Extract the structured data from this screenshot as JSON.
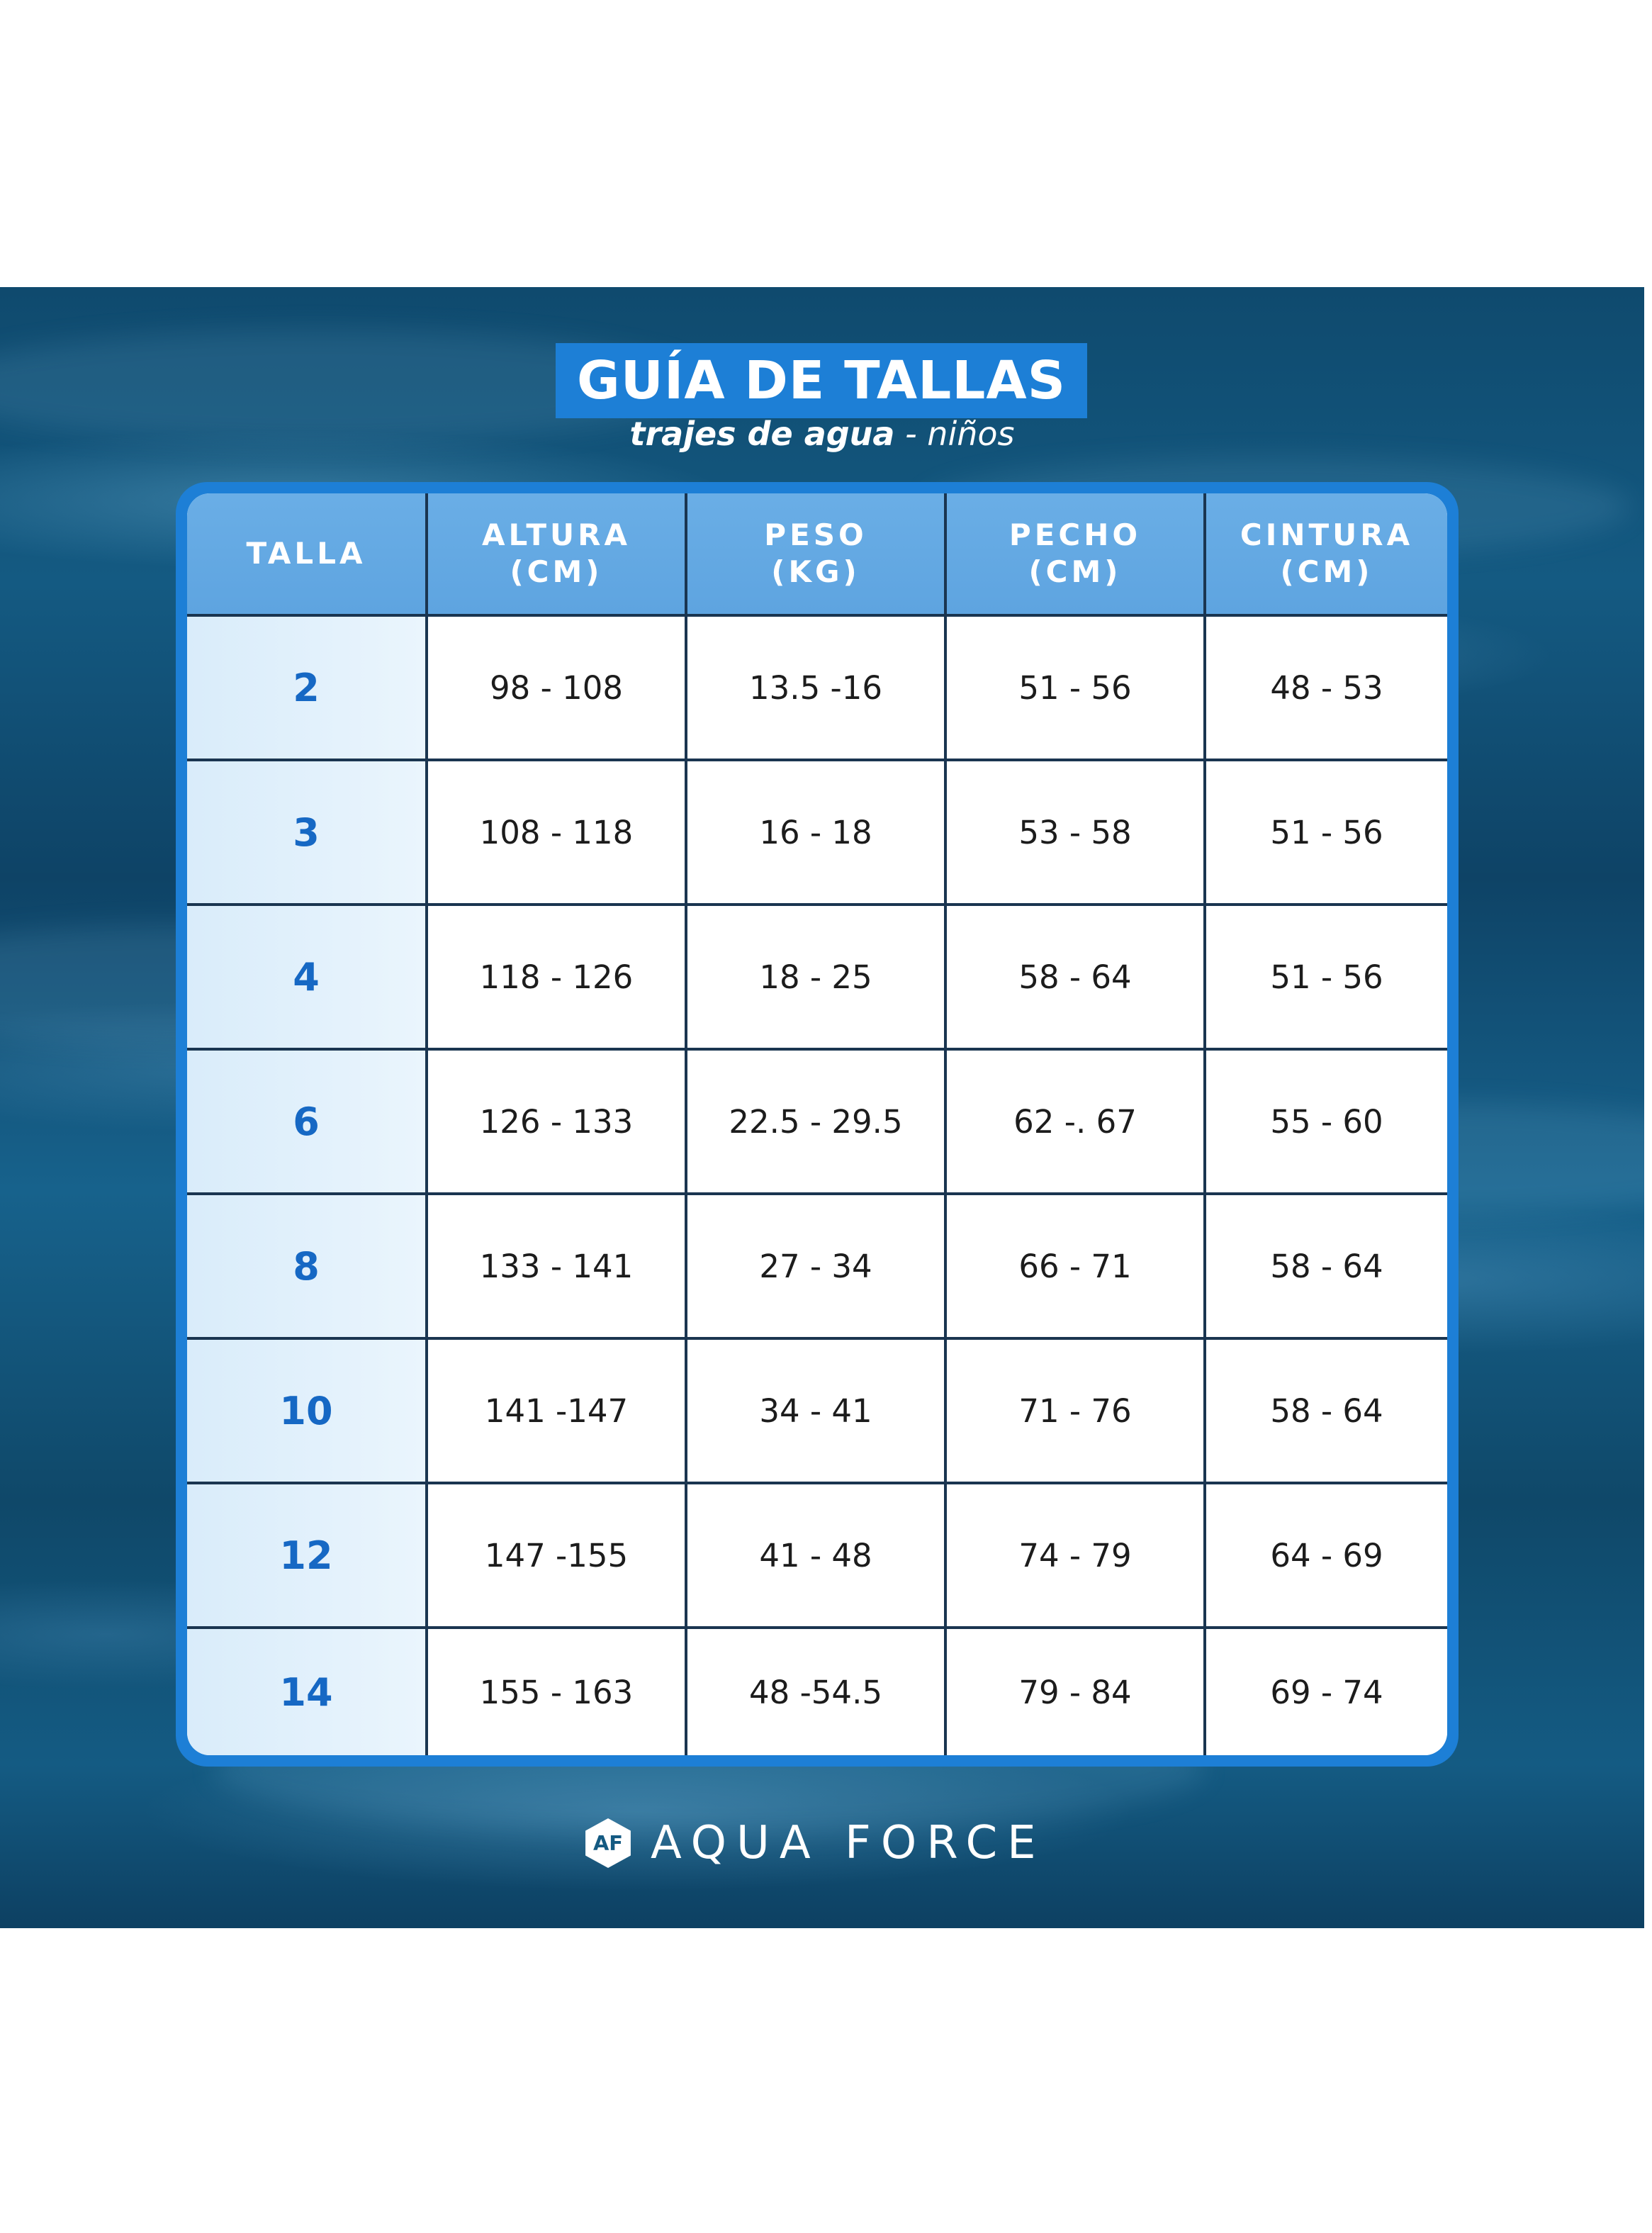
{
  "header": {
    "title": "GUÍA DE TALLAS",
    "subtitle_bold": "trajes de agua",
    "subtitle_rest": " - niños"
  },
  "table": {
    "columns": [
      "TALLA",
      "ALTURA\n(CM)",
      "PESO\n(KG)",
      "PECHO\n(CM)",
      "CINTURA\n(CM)"
    ],
    "rows": [
      {
        "talla": "2",
        "altura": "98 - 108",
        "peso": "13.5 -16",
        "pecho": "51 - 56",
        "cintura": "48 - 53"
      },
      {
        "talla": "3",
        "altura": "108 - 118",
        "peso": "16 - 18",
        "pecho": "53 - 58",
        "cintura": "51 - 56"
      },
      {
        "talla": "4",
        "altura": "118 - 126",
        "peso": "18 - 25",
        "pecho": "58 - 64",
        "cintura": "51 - 56"
      },
      {
        "talla": "6",
        "altura": "126 - 133",
        "peso": "22.5 - 29.5",
        "pecho": "62 -. 67",
        "cintura": "55 - 60"
      },
      {
        "talla": "8",
        "altura": "133 - 141",
        "peso": "27 - 34",
        "pecho": "66 - 71",
        "cintura": "58 - 64"
      },
      {
        "talla": "10",
        "altura": "141 -147",
        "peso": "34 - 41",
        "pecho": "71 - 76",
        "cintura": "58 - 64"
      },
      {
        "talla": "12",
        "altura": "147 -155",
        "peso": "41 - 48",
        "pecho": "74 - 79",
        "cintura": "64 - 69"
      },
      {
        "talla": "14",
        "altura": "155 - 163",
        "peso": "48 -54.5",
        "pecho": "79 - 84",
        "cintura": "69 - 74"
      }
    ]
  },
  "footer": {
    "logo_mark": "AF",
    "brand_name": "AQUA FORCE",
    "logo_icon": "hexagon-af-logo-icon"
  },
  "colors": {
    "accent_blue": "#1d7fd6",
    "header_blue": "#5ea4e0",
    "size_text": "#1668c4",
    "background_water": "#145a82"
  }
}
